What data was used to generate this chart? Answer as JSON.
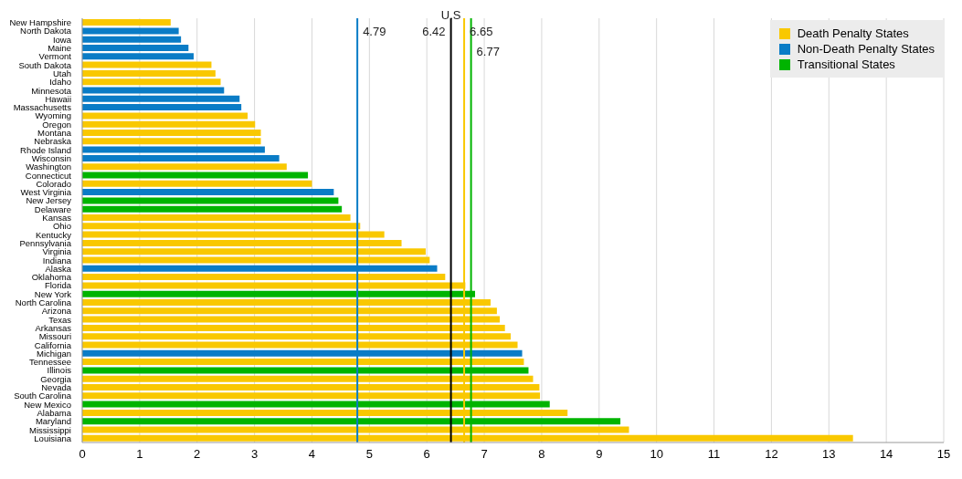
{
  "chart_data": {
    "type": "bar",
    "orientation": "horizontal",
    "stacked": true,
    "categories": [
      "New Hampshire",
      "North Dakota",
      "Iowa",
      "Maine",
      "Vermont",
      "South Dakota",
      "Utah",
      "Idaho",
      "Minnesota",
      "Hawaii",
      "Massachusetts",
      "Wyoming",
      "Oregon",
      "Montana",
      "Nebraska",
      "Rhode Island",
      "Wisconsin",
      "Washington",
      "Connecticut",
      "Colorado",
      "West Virginia",
      "New Jersey",
      "Delaware",
      "Kansas",
      "Ohio",
      "Kentucky",
      "Pennsylvania",
      "Virginia",
      "Indiana",
      "Alaska",
      "Oklahoma",
      "Florida",
      "New York",
      "North Carolina",
      "Arizona",
      "Texas",
      "Arkansas",
      "Missouri",
      "California",
      "Michigan",
      "Tennessee",
      "Illinois",
      "Georgia",
      "Nevada",
      "South Carolina",
      "New Mexico",
      "Alabama",
      "Maryland",
      "Mississippi",
      "Louisiana"
    ],
    "series": [
      {
        "name": "Death Penalty States",
        "color": "#f9c800",
        "values": [
          1.54,
          null,
          null,
          null,
          null,
          2.25,
          2.32,
          2.41,
          null,
          null,
          null,
          2.88,
          3.01,
          3.11,
          3.11,
          null,
          null,
          3.56,
          null,
          4.0,
          null,
          null,
          null,
          4.67,
          4.84,
          5.26,
          5.56,
          5.98,
          6.05,
          null,
          6.32,
          6.67,
          null,
          7.11,
          7.22,
          7.27,
          7.36,
          7.46,
          7.58,
          null,
          7.69,
          null,
          7.85,
          7.96,
          7.97,
          null,
          8.45,
          null,
          9.52,
          13.42
        ]
      },
      {
        "name": "Non-Death Penalty States",
        "color": "#0a7cc6",
        "values": [
          null,
          1.68,
          1.72,
          1.85,
          1.94,
          null,
          null,
          null,
          2.47,
          2.74,
          2.77,
          null,
          null,
          null,
          null,
          3.18,
          3.43,
          null,
          null,
          null,
          4.38,
          null,
          null,
          null,
          null,
          null,
          null,
          null,
          null,
          6.18,
          null,
          null,
          null,
          null,
          null,
          null,
          null,
          null,
          null,
          7.66,
          null,
          null,
          null,
          null,
          null,
          null,
          null,
          null,
          null,
          null
        ]
      },
      {
        "name": "Transitional States",
        "color": "#00b400",
        "values": [
          null,
          null,
          null,
          null,
          null,
          null,
          null,
          null,
          null,
          null,
          null,
          null,
          null,
          null,
          null,
          null,
          null,
          null,
          3.93,
          null,
          null,
          4.46,
          4.52,
          null,
          null,
          null,
          null,
          null,
          null,
          null,
          null,
          null,
          6.84,
          null,
          null,
          null,
          null,
          null,
          null,
          null,
          null,
          7.77,
          null,
          null,
          null,
          8.14,
          null,
          9.37,
          null,
          null
        ]
      }
    ],
    "xlim": [
      0,
      15
    ],
    "xticks": [
      0,
      1,
      2,
      3,
      4,
      5,
      6,
      7,
      8,
      9,
      10,
      11,
      12,
      13,
      14,
      15
    ],
    "grid": "x",
    "legend": "top right",
    "ref_lines": [
      {
        "axis": "x",
        "value": 4.79,
        "label": "4.79",
        "color": "#0a7cc6"
      },
      {
        "axis": "x",
        "value": 6.42,
        "label": "6.42",
        "color": "#000000"
      },
      {
        "axis": "x",
        "value": 6.65,
        "label": "6.65",
        "color": "#f9c800"
      },
      {
        "axis": "x",
        "value": 6.77,
        "label": "6.77",
        "color": "#00b400"
      }
    ],
    "annotations": [
      {
        "text": "U.S",
        "x": 6.42
      }
    ]
  }
}
